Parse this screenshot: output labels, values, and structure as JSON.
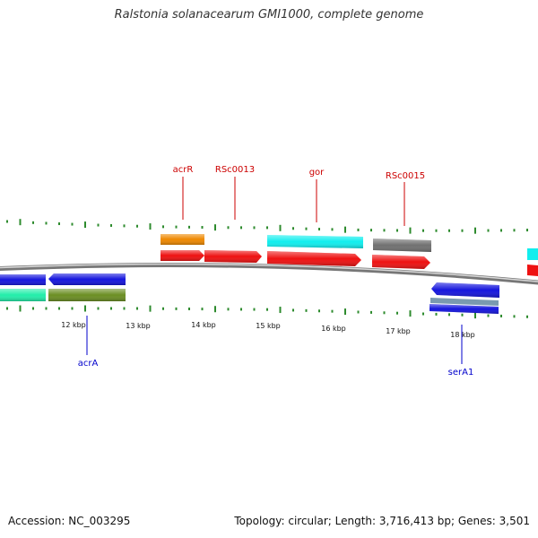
{
  "title": "Ralstonia solanacearum GMI1000, complete genome",
  "footer": {
    "accession": "Accession: NC_003295",
    "summary": "Topology: circular; Length: 3,716,413 bp; Genes: 3,501"
  },
  "colors": {
    "backbone": "#8a8a8a",
    "tick": "#2e8b2e",
    "plus_label": "#cc0000",
    "minus_label": "#0000cc",
    "red": "#ee1111",
    "orange": "#ee8800",
    "cyan": "#11eeee",
    "gray": "#707070",
    "blue": "#1515dd",
    "mint": "#22eeaa",
    "olive": "#6b8e23",
    "steel": "#7a9ab0"
  },
  "scale_labels": [
    "12 kbp",
    "13 kbp",
    "14 kbp",
    "15 kbp",
    "16 kbp",
    "17 kbp",
    "18 kbp"
  ],
  "gene_labels": [
    {
      "name": "acrR",
      "strand": "plus"
    },
    {
      "name": "RSc0013",
      "strand": "plus"
    },
    {
      "name": "gor",
      "strand": "plus"
    },
    {
      "name": "RSc0015",
      "strand": "plus"
    },
    {
      "name": "acrA",
      "strand": "minus"
    },
    {
      "name": "serA1",
      "strand": "minus"
    }
  ]
}
